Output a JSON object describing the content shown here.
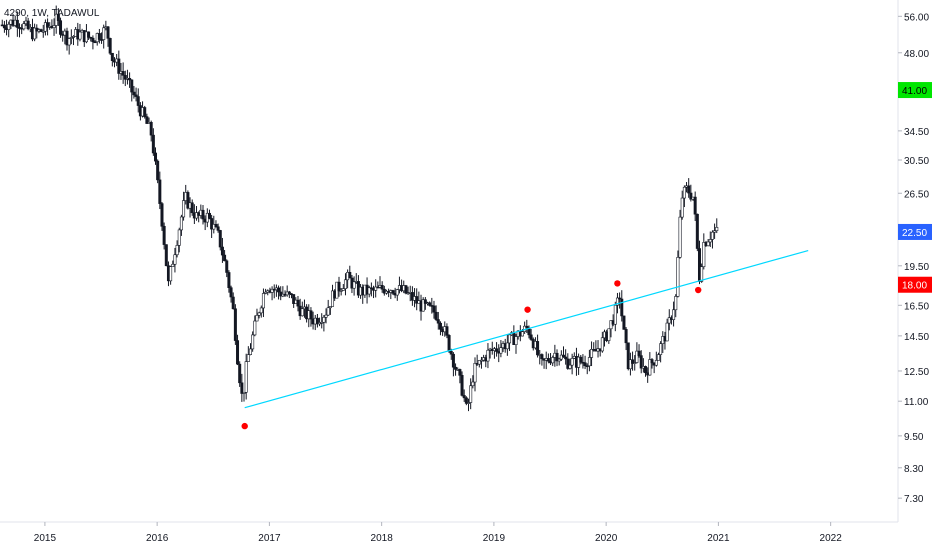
{
  "chart_data": {
    "type": "candlestick",
    "title": "4290, 1W, TADAWUL",
    "x_axis": {
      "ticks": [
        "2015",
        "2016",
        "2017",
        "2018",
        "2019",
        "2020",
        "2021",
        "2022"
      ],
      "range": [
        2014.6,
        2022.6
      ]
    },
    "y_axis": {
      "scale": "log",
      "position": "right",
      "ticks": [
        "56.00",
        "48.00",
        "34.50",
        "30.50",
        "26.50",
        "19.50",
        "16.50",
        "14.50",
        "12.50",
        "11.00",
        "9.50",
        "8.30",
        "7.30"
      ],
      "range": [
        6.6,
        60
      ]
    },
    "price_labels": [
      {
        "text": "41.00",
        "value": 41.0,
        "color": "#00e600",
        "text_color": "#000000"
      },
      {
        "text": "22.50",
        "value": 22.5,
        "color": "#2962ff",
        "text_color": "#ffffff"
      },
      {
        "text": "18.00",
        "value": 18.0,
        "color": "#ff0000",
        "text_color": "#ffffff"
      }
    ],
    "series": [
      {
        "kind": "price",
        "color": "#131722",
        "points": [
          [
            2014.62,
            54
          ],
          [
            2014.75,
            55
          ],
          [
            2014.9,
            52
          ],
          [
            2015.0,
            53
          ],
          [
            2015.1,
            55
          ],
          [
            2015.2,
            51
          ],
          [
            2015.3,
            52
          ],
          [
            2015.42,
            51
          ],
          [
            2015.55,
            53
          ],
          [
            2015.6,
            47
          ],
          [
            2015.72,
            43
          ],
          [
            2015.82,
            39
          ],
          [
            2015.95,
            34
          ],
          [
            2016.0,
            28
          ],
          [
            2016.05,
            23
          ],
          [
            2016.1,
            18
          ],
          [
            2016.14,
            20
          ],
          [
            2016.25,
            26
          ],
          [
            2016.35,
            24
          ],
          [
            2016.45,
            24
          ],
          [
            2016.55,
            22
          ],
          [
            2016.62,
            19
          ],
          [
            2016.68,
            16
          ],
          [
            2016.72,
            13
          ],
          [
            2016.76,
            11
          ],
          [
            2016.8,
            13
          ],
          [
            2016.9,
            16
          ],
          [
            2016.97,
            18
          ],
          [
            2017.08,
            17.5
          ],
          [
            2017.2,
            17
          ],
          [
            2017.3,
            16
          ],
          [
            2017.4,
            15.5
          ],
          [
            2017.5,
            16
          ],
          [
            2017.58,
            17.5
          ],
          [
            2017.7,
            18.5
          ],
          [
            2017.8,
            17.5
          ],
          [
            2017.92,
            17.5
          ],
          [
            2018.05,
            17.8
          ],
          [
            2018.2,
            17.5
          ],
          [
            2018.35,
            16.5
          ],
          [
            2018.48,
            16
          ],
          [
            2018.55,
            15
          ],
          [
            2018.62,
            13.5
          ],
          [
            2018.72,
            11.5
          ],
          [
            2018.76,
            10.5
          ],
          [
            2018.82,
            12.5
          ],
          [
            2018.95,
            13.5
          ],
          [
            2019.1,
            14
          ],
          [
            2019.2,
            14.5
          ],
          [
            2019.3,
            15
          ],
          [
            2019.35,
            14.2
          ],
          [
            2019.42,
            12.8
          ],
          [
            2019.55,
            13.5
          ],
          [
            2019.65,
            13
          ],
          [
            2019.8,
            13
          ],
          [
            2019.9,
            13.5
          ],
          [
            2020.0,
            14.5
          ],
          [
            2020.08,
            16
          ],
          [
            2020.12,
            17.2
          ],
          [
            2020.16,
            14.5
          ],
          [
            2020.2,
            12.8
          ],
          [
            2020.28,
            13.3
          ],
          [
            2020.35,
            12.5
          ],
          [
            2020.45,
            13.3
          ],
          [
            2020.55,
            15
          ],
          [
            2020.62,
            17
          ],
          [
            2020.67,
            26
          ],
          [
            2020.72,
            27
          ],
          [
            2020.78,
            26
          ],
          [
            2020.83,
            18.5
          ],
          [
            2020.87,
            21.5
          ],
          [
            2020.95,
            22.5
          ],
          [
            2021.0,
            22.5
          ]
        ]
      },
      {
        "kind": "trendline",
        "color": "#00d8ff",
        "points": [
          [
            2016.78,
            10.7
          ],
          [
            2021.8,
            20.8
          ]
        ]
      }
    ],
    "markers": [
      {
        "x": 2016.78,
        "y": 9.9,
        "color": "#ff0000"
      },
      {
        "x": 2019.3,
        "y": 16.2,
        "color": "#ff0000"
      },
      {
        "x": 2020.1,
        "y": 18.1,
        "color": "#ff0000"
      },
      {
        "x": 2020.82,
        "y": 17.6,
        "color": "#ff0000"
      }
    ],
    "grid": false,
    "legend": "none"
  }
}
